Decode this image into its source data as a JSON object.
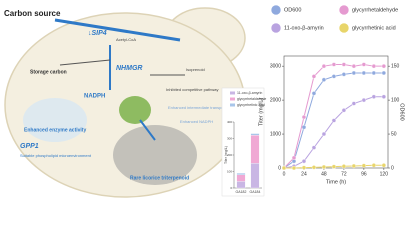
{
  "diagram": {
    "carbon_source": "Carbon source",
    "sip4": "↓SIP4",
    "nhmgr": "NHMGR",
    "acetyl_coa": "Acetyl-CoA",
    "isoprenoid": "Isoprenoid",
    "storage_carbon": "Storage carbon",
    "nadph": "NADPH",
    "inhibited": "Inhibited competitive pathway",
    "enhanced_transport": "Enhanced intermediate transport",
    "enhanced_nadph": "Enhanced NADPH",
    "enzyme": "Enhanced enzyme activity",
    "gpp1": "GPP1",
    "phospholipid": "Suitable phospholipid microenvironment",
    "product": "Rare licorice triterpenoid"
  },
  "chart_data": [
    {
      "type": "bar",
      "stacked": true,
      "y_label": "Titer (mg/L)",
      "categories": [
        "GA182",
        "GA184"
      ],
      "series": [
        {
          "name": "11-oxo-β-amyrin",
          "color": "#c9b6e4",
          "values": [
            40,
            150
          ]
        },
        {
          "name": "glycyrrhetaldehyde",
          "color": "#f0a8d4",
          "values": [
            40,
            170
          ]
        },
        {
          "name": "glycyrrhetinic acid",
          "color": "#a9c6ea",
          "values": [
            10,
            10
          ]
        }
      ],
      "ylim": [
        0,
        400
      ],
      "yticks": [
        0,
        100,
        200,
        300,
        400
      ]
    },
    {
      "type": "line",
      "x_label": "Time (h)",
      "y_label": "Titer (mg/L)",
      "y2_label": "OD600",
      "x": [
        0,
        12,
        24,
        36,
        48,
        60,
        72,
        84,
        96,
        108,
        120
      ],
      "series": [
        {
          "name": "OD600",
          "color": "#8fa9de",
          "axis": "y2",
          "values": [
            0,
            10,
            60,
            110,
            130,
            135,
            138,
            140,
            140,
            140,
            140
          ]
        },
        {
          "name": "glycyrrhetaldehyde",
          "color": "#e59ad0",
          "values": [
            0,
            300,
            1500,
            2700,
            3000,
            3050,
            3050,
            3000,
            3050,
            3000,
            3000
          ]
        },
        {
          "name": "11-oxo-β-amyrin",
          "color": "#b9a3e0",
          "values": [
            0,
            50,
            200,
            600,
            1000,
            1400,
            1700,
            1900,
            2000,
            2100,
            2100
          ]
        },
        {
          "name": "glycyrrhetinic acid",
          "color": "#e8d56a",
          "values": [
            0,
            0,
            10,
            20,
            30,
            40,
            50,
            60,
            70,
            80,
            80
          ]
        }
      ],
      "xlim": [
        0,
        125
      ],
      "xticks": [
        0,
        24,
        48,
        72,
        96,
        120
      ],
      "ylim": [
        0,
        3300
      ],
      "yticks": [
        0,
        1000,
        2000,
        3000
      ],
      "y2lim": [
        0,
        165
      ],
      "y2ticks": [
        0,
        50,
        100,
        150
      ]
    }
  ]
}
